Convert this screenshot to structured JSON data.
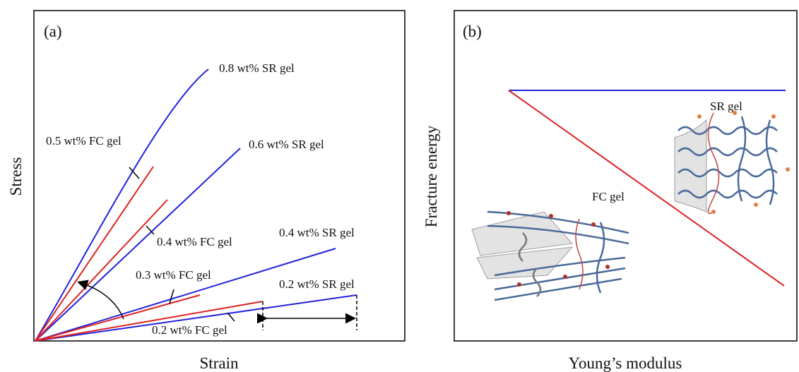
{
  "panel_a": {
    "label": "(a)",
    "y_axis_title": "Stress",
    "x_axis_title": "Strain",
    "line_labels": [
      "0.8 wt% SR gel",
      "0.5 wt% FC gel",
      "0.6 wt% SR gel",
      "0.4 wt% FC gel",
      "0.4 wt% SR gel",
      "0.3 wt% FC gel",
      "0.2 wt% SR gel",
      "0.2 wt% FC gel"
    ]
  },
  "panel_b": {
    "label": "(b)",
    "y_axis_title": "Fracture energy",
    "x_axis_title": "Young’s modulus",
    "annotations": [
      "SR gel",
      "FC gel"
    ]
  }
}
